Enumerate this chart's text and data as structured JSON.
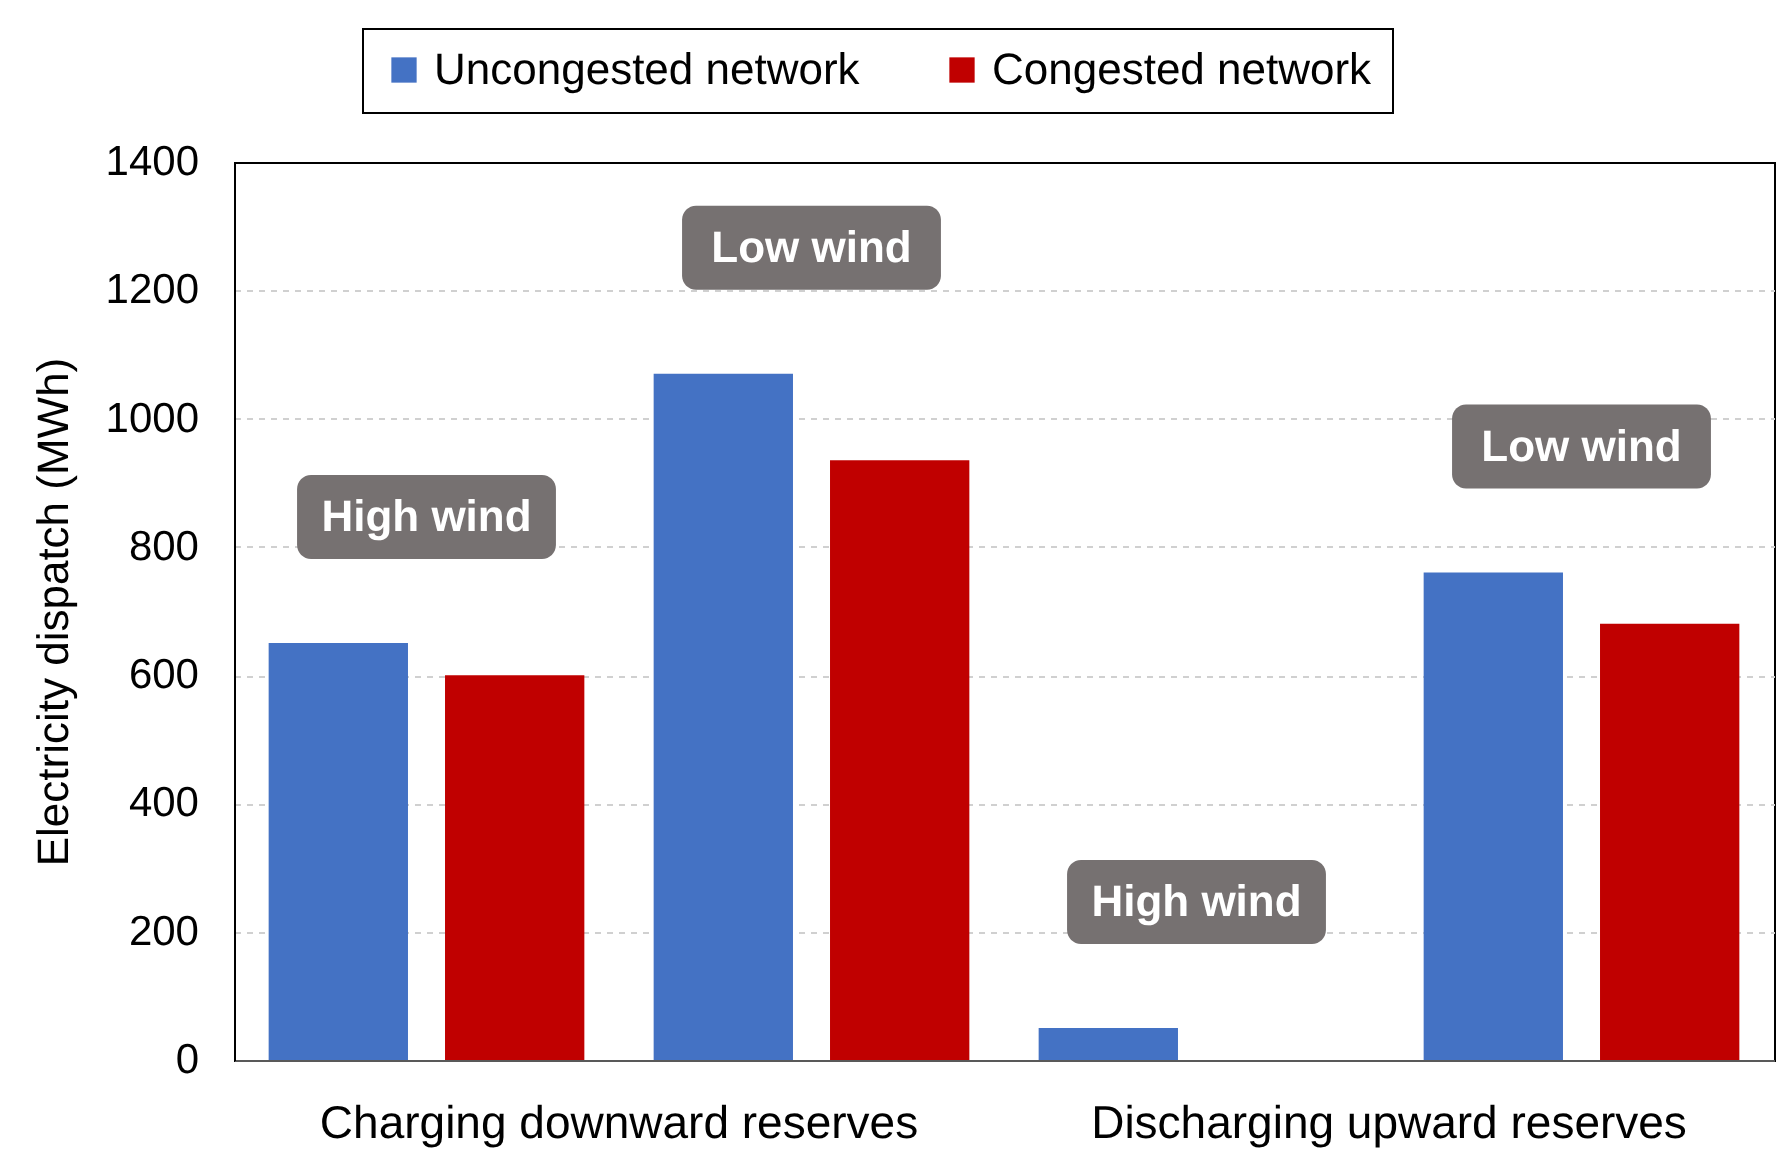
{
  "chart_data": {
    "type": "bar",
    "categories": [
      "High wind",
      "Low wind",
      "High wind",
      "Low wind"
    ],
    "series": [
      {
        "name": "Uncongested network",
        "color": "#4472c4",
        "values": [
          650,
          1070,
          50,
          760
        ]
      },
      {
        "name": "Congested network",
        "color": "#c00000",
        "values": [
          600,
          935,
          0,
          680
        ]
      }
    ],
    "ylabel": "Electricity dispatch (MWh)",
    "ylim": [
      0,
      1400
    ],
    "yticks": [
      0,
      200,
      400,
      600,
      800,
      1000,
      1200,
      1400
    ],
    "grid": "y",
    "legend": "top",
    "annotations": [
      "Charging downward reserves",
      "Discharging upward reserves"
    ]
  }
}
